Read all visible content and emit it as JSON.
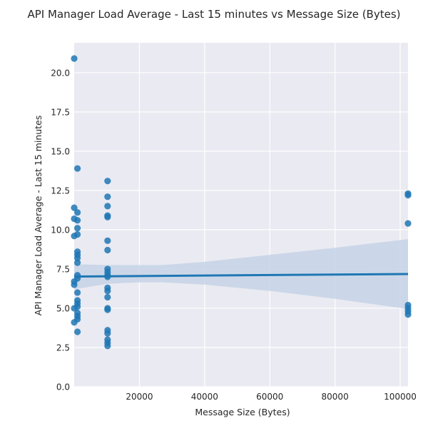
{
  "chart_data": {
    "type": "scatter",
    "title": "API Manager Load Average - Last 15 minutes vs Message Size (Bytes)",
    "xlabel": "Message Size (Bytes)",
    "ylabel": "API Manager Load Average - Last 15 minutes",
    "xlim": [
      0,
      102400
    ],
    "ylim": [
      0,
      21.9
    ],
    "x_ticks": [
      20000,
      40000,
      60000,
      80000,
      100000
    ],
    "x_tick_labels": [
      "20000",
      "40000",
      "60000",
      "80000",
      "100000"
    ],
    "y_ticks": [
      0,
      2.5,
      5,
      7.5,
      10,
      12.5,
      15,
      17.5,
      20
    ],
    "y_tick_labels": [
      "0.0",
      "2.5",
      "5.0",
      "7.5",
      "10.0",
      "12.5",
      "15.0",
      "17.5",
      "20.0"
    ],
    "grid": true,
    "background": "#eaeaf2",
    "point_color": "#1f77b4",
    "line_color": "#1f77b4",
    "band_color": "#c5d3e6",
    "regression": {
      "x": [
        0,
        102400
      ],
      "y": [
        7.02,
        7.18
      ],
      "ci_x": [
        0,
        10000,
        20000,
        27000,
        40000,
        60000,
        80000,
        102400
      ],
      "ci_lower": [
        6.2,
        6.55,
        6.65,
        6.65,
        6.5,
        6.1,
        5.6,
        4.95
      ],
      "ci_upper": [
        7.8,
        7.75,
        7.75,
        7.75,
        7.95,
        8.4,
        8.85,
        9.4
      ]
    },
    "points": [
      {
        "x": 0,
        "y": 20.9
      },
      {
        "x": 1000,
        "y": 13.9
      },
      {
        "x": 0,
        "y": 11.4
      },
      {
        "x": 1000,
        "y": 11.1
      },
      {
        "x": 0,
        "y": 10.7
      },
      {
        "x": 1000,
        "y": 10.6
      },
      {
        "x": 1000,
        "y": 10.1
      },
      {
        "x": 1000,
        "y": 9.7
      },
      {
        "x": 0,
        "y": 9.6
      },
      {
        "x": 1000,
        "y": 8.6
      },
      {
        "x": 1000,
        "y": 8.4
      },
      {
        "x": 1000,
        "y": 8.2
      },
      {
        "x": 1000,
        "y": 7.9
      },
      {
        "x": 1000,
        "y": 7.1
      },
      {
        "x": 1000,
        "y": 6.9
      },
      {
        "x": 0,
        "y": 6.7
      },
      {
        "x": 0,
        "y": 6.5
      },
      {
        "x": 1000,
        "y": 6.0
      },
      {
        "x": 1000,
        "y": 5.5
      },
      {
        "x": 1000,
        "y": 5.3
      },
      {
        "x": 1000,
        "y": 5.1
      },
      {
        "x": 0,
        "y": 5.0
      },
      {
        "x": 1000,
        "y": 4.7
      },
      {
        "x": 1000,
        "y": 4.5
      },
      {
        "x": 1000,
        "y": 4.3
      },
      {
        "x": 0,
        "y": 4.1
      },
      {
        "x": 1000,
        "y": 3.5
      },
      {
        "x": 10240,
        "y": 13.1
      },
      {
        "x": 10240,
        "y": 12.1
      },
      {
        "x": 10240,
        "y": 11.5
      },
      {
        "x": 10240,
        "y": 10.9
      },
      {
        "x": 10240,
        "y": 10.8
      },
      {
        "x": 10240,
        "y": 9.3
      },
      {
        "x": 10240,
        "y": 8.7
      },
      {
        "x": 10240,
        "y": 7.5
      },
      {
        "x": 10240,
        "y": 7.3
      },
      {
        "x": 10240,
        "y": 7.1
      },
      {
        "x": 10240,
        "y": 7.0
      },
      {
        "x": 10240,
        "y": 6.3
      },
      {
        "x": 10240,
        "y": 6.1
      },
      {
        "x": 10240,
        "y": 5.7
      },
      {
        "x": 10240,
        "y": 5.0
      },
      {
        "x": 10240,
        "y": 4.9
      },
      {
        "x": 10240,
        "y": 3.6
      },
      {
        "x": 10240,
        "y": 3.4
      },
      {
        "x": 10240,
        "y": 3.0
      },
      {
        "x": 10240,
        "y": 2.8
      },
      {
        "x": 10240,
        "y": 2.6
      },
      {
        "x": 102400,
        "y": 12.3
      },
      {
        "x": 102400,
        "y": 12.2
      },
      {
        "x": 102400,
        "y": 10.4
      },
      {
        "x": 102400,
        "y": 5.2
      },
      {
        "x": 102400,
        "y": 5.0
      },
      {
        "x": 102400,
        "y": 4.8
      },
      {
        "x": 102400,
        "y": 4.6
      }
    ]
  }
}
